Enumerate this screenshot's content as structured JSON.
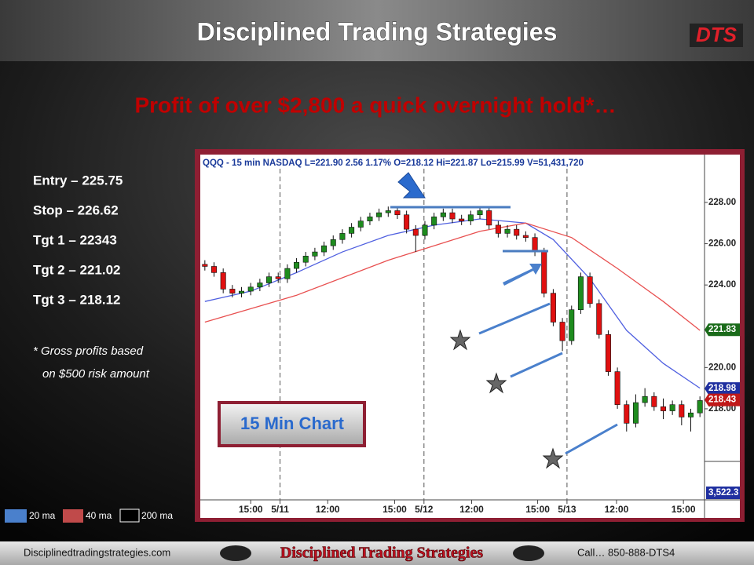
{
  "header": {
    "title": "Disciplined Trading Strategies",
    "logo": "DTS"
  },
  "headline": "Profit of over $2,800 a quick overnight hold*…",
  "trade_levels": [
    "Entry – 225.75",
    "Stop – 226.62",
    "Tgt 1  – 22343",
    "Tgt 2  – 221.02",
    "Tgt 3 – 218.12"
  ],
  "note": [
    "* Gross profits based",
    "on $500 risk amount"
  ],
  "chart_label": "15 Min Chart",
  "ma_legend": [
    "20 ma",
    "40 ma",
    "200 ma"
  ],
  "footer": {
    "website": "Disciplinedtradingstrategies.com",
    "brand": "Disciplined Trading Strategies",
    "phone": "Call… 850-888-DTS4"
  },
  "chart_data": {
    "type": "candlestick",
    "title": "QQQ - 15 min  NASDAQ  L=221.90  2.56  1.17%  O=218.12  Hi=221.87  Lo=215.99  V=51,431,720",
    "open": [
      225.0,
      224.9,
      224.6,
      223.8,
      223.6,
      223.7,
      223.9,
      224.1,
      224.4,
      224.3,
      224.8,
      225.1,
      225.4,
      225.6,
      225.9,
      226.2,
      226.5,
      226.8,
      227.1,
      227.3,
      227.5,
      227.6,
      227.4,
      226.7,
      226.4,
      226.9,
      227.3,
      227.5,
      227.2,
      227.1,
      227.4,
      227.6,
      226.9,
      226.5,
      226.7,
      226.4,
      226.3,
      225.6,
      223.6,
      222.2,
      221.3,
      222.8,
      224.4,
      223.1,
      221.6,
      219.8,
      218.2,
      217.3,
      218.3,
      218.6,
      218.1,
      217.9,
      218.2,
      217.6,
      217.8
    ],
    "high": [
      225.2,
      225.1,
      224.8,
      224.0,
      223.9,
      224.1,
      224.3,
      224.6,
      224.6,
      225.0,
      225.3,
      225.6,
      225.8,
      226.1,
      226.4,
      226.7,
      227.0,
      227.3,
      227.5,
      227.7,
      227.8,
      227.8,
      227.6,
      226.9,
      227.1,
      227.5,
      227.7,
      227.7,
      227.4,
      227.6,
      227.8,
      227.8,
      227.1,
      226.9,
      226.9,
      226.6,
      226.5,
      225.8,
      223.8,
      222.4,
      223.0,
      224.6,
      224.6,
      223.3,
      221.8,
      220.0,
      218.4,
      218.7,
      219.0,
      218.8,
      218.5,
      218.4,
      218.4,
      218.0,
      218.6
    ],
    "low": [
      224.7,
      224.4,
      223.6,
      223.4,
      223.4,
      223.5,
      223.7,
      223.9,
      224.1,
      224.1,
      224.6,
      224.9,
      225.2,
      225.4,
      225.7,
      226.0,
      226.3,
      226.6,
      226.9,
      227.1,
      227.3,
      227.2,
      226.5,
      225.6,
      226.2,
      226.7,
      227.1,
      227.0,
      226.9,
      226.9,
      227.2,
      226.7,
      226.3,
      226.3,
      226.2,
      226.1,
      225.4,
      223.4,
      222.0,
      220.8,
      221.1,
      222.6,
      222.9,
      221.4,
      219.6,
      218.0,
      216.9,
      217.1,
      218.1,
      217.9,
      217.5,
      217.7,
      217.2,
      216.9,
      217.6
    ],
    "close": [
      224.9,
      224.6,
      223.8,
      223.6,
      223.7,
      223.9,
      224.1,
      224.4,
      224.3,
      224.8,
      225.1,
      225.4,
      225.6,
      225.9,
      226.2,
      226.5,
      226.8,
      227.1,
      227.3,
      227.5,
      227.6,
      227.4,
      226.7,
      226.4,
      226.9,
      227.3,
      227.5,
      227.2,
      227.1,
      227.4,
      227.6,
      226.9,
      226.5,
      226.7,
      226.4,
      226.3,
      225.6,
      223.6,
      222.2,
      221.3,
      222.8,
      224.4,
      223.1,
      221.6,
      219.8,
      218.2,
      217.3,
      218.3,
      218.6,
      218.1,
      217.9,
      218.2,
      217.6,
      217.8,
      218.4
    ],
    "up_color": "#1e8c1e",
    "down_color": "#e01010",
    "series": [
      {
        "name": "20 ma",
        "color": "#5060e0",
        "x": [
          0,
          5,
          10,
          15,
          20,
          25,
          30,
          35,
          38,
          42,
          46,
          50,
          54
        ],
        "values": [
          223.2,
          223.7,
          224.6,
          225.6,
          226.4,
          226.9,
          227.2,
          227.0,
          226.2,
          224.3,
          221.8,
          220.2,
          219.0
        ]
      },
      {
        "name": "40 ma",
        "color": "#e85050",
        "x": [
          0,
          10,
          20,
          30,
          35,
          40,
          45,
          50,
          54
        ],
        "values": [
          222.2,
          223.5,
          225.2,
          226.6,
          227.0,
          226.3,
          224.8,
          223.2,
          221.8
        ]
      }
    ],
    "xlim": [
      -0.5,
      54.5
    ],
    "xticks": [
      {
        "value": 5,
        "label": "15:00"
      },
      {
        "value": 8.2,
        "label": "5/11"
      },
      {
        "value": 13.4,
        "label": "12:00"
      },
      {
        "value": 20.7,
        "label": "15:00"
      },
      {
        "value": 23.9,
        "label": "5/12"
      },
      {
        "value": 29.1,
        "label": "12:00"
      },
      {
        "value": 36.3,
        "label": "15:00"
      },
      {
        "value": 39.5,
        "label": "5/13"
      },
      {
        "value": 44.9,
        "label": "12:00"
      },
      {
        "value": 52.2,
        "label": "15:00"
      }
    ],
    "ylim": [
      215.45,
      230.28
    ],
    "yticks": [
      {
        "value": 228,
        "label": "228.00"
      },
      {
        "value": 226,
        "label": "226.00"
      },
      {
        "value": 224,
        "label": "224.00"
      },
      {
        "value": 220,
        "label": "220.00"
      },
      {
        "value": 218,
        "label": "218.00"
      }
    ],
    "price_flags": [
      {
        "value": 221.83,
        "label": "221.83",
        "color": "#1a6b1a"
      },
      {
        "value": 218.98,
        "label": "218.98",
        "color": "#2030a0"
      },
      {
        "value": 218.43,
        "label": "218.43",
        "color": "#c01818"
      }
    ],
    "volume_label": "3,522.3"
  }
}
